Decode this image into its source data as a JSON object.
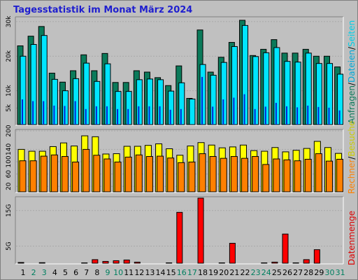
{
  "title": "Tagesstatistik im Monat März 2024",
  "colors": {
    "background": "#bfbfbf",
    "plot_bg": "#c0c0c0",
    "anfragen": "#0b7a5a",
    "dateien": "#00e5ff",
    "seiten": "#0025d6",
    "besuche": "#ffff00",
    "rechner": "#ff8000",
    "datenmenge": "#ff0000",
    "weekend_label": "#008060",
    "weekday_label": "#000000",
    "title": "#1f1fcf"
  },
  "right_labels": {
    "top": [
      {
        "text": "Anfragen",
        "color": "#0b7a5a"
      },
      {
        "text": "/",
        "color": "#000000"
      },
      {
        "text": "Dateien",
        "color": "#00a8d8"
      },
      {
        "text": "/",
        "color": "#000000"
      },
      {
        "text": "Seiten",
        "color": "#00cfe8"
      }
    ],
    "middle": [
      {
        "text": "Rechner",
        "color": "#ff8000"
      },
      {
        "text": "/",
        "color": "#000000"
      },
      {
        "text": "Besuche",
        "color": "#cccc00"
      }
    ],
    "bottom": [
      {
        "text": "Datenmenge",
        "color": "#dd0000"
      }
    ]
  },
  "chart_data": [
    {
      "type": "bar",
      "panel": "top",
      "x": [
        "1",
        "2",
        "3",
        "4",
        "5",
        "6",
        "7",
        "8",
        "9",
        "10",
        "11",
        "12",
        "13",
        "14",
        "15",
        "16",
        "17",
        "18",
        "19",
        "20",
        "21",
        "22",
        "23",
        "24",
        "25",
        "26",
        "27",
        "28",
        "29",
        "30",
        "31"
      ],
      "ylim": [
        0,
        31000
      ],
      "yticks": [
        "5k",
        "10k",
        "20k",
        "30k"
      ],
      "ytick_values": [
        5000,
        10000,
        20000,
        30000
      ],
      "series": [
        {
          "name": "Anfragen",
          "values": [
            23000,
            25800,
            28600,
            15100,
            12500,
            15800,
            20400,
            15800,
            20800,
            12400,
            12400,
            15800,
            15400,
            13800,
            11500,
            17200,
            7800,
            27600,
            15400,
            19700,
            24000,
            30400,
            20200,
            22000,
            24800,
            20900,
            20900,
            22000,
            20000,
            20000,
            16900
          ]
        },
        {
          "name": "Dateien",
          "values": [
            20000,
            23400,
            26000,
            13300,
            10000,
            13500,
            18000,
            12700,
            17800,
            9800,
            9800,
            13200,
            13400,
            13200,
            9900,
            12300,
            7600,
            17600,
            14500,
            18200,
            22800,
            28900,
            19900,
            21000,
            22500,
            18500,
            18300,
            20900,
            17900,
            17900,
            14800
          ]
        },
        {
          "name": "Seiten",
          "values": [
            7500,
            7000,
            7000,
            5700,
            5600,
            7000,
            4700,
            5500,
            5500,
            4700,
            4700,
            5500,
            5500,
            5500,
            4500,
            4700,
            0,
            14000,
            5400,
            7500,
            8000,
            9000,
            4700,
            5400,
            6500,
            5500,
            5200,
            5700,
            5300,
            5100,
            4300
          ]
        }
      ]
    },
    {
      "type": "bar",
      "panel": "middle",
      "x": [
        "1",
        "2",
        "3",
        "4",
        "5",
        "6",
        "7",
        "8",
        "9",
        "10",
        "11",
        "12",
        "13",
        "14",
        "15",
        "16",
        "17",
        "18",
        "19",
        "20",
        "21",
        "22",
        "23",
        "24",
        "25",
        "26",
        "27",
        "28",
        "29",
        "30",
        "31"
      ],
      "ylim": [
        0,
        200
      ],
      "yticks": [
        "20",
        "60",
        "100",
        "140",
        "200"
      ],
      "ytick_values": [
        20,
        60,
        100,
        140,
        200
      ],
      "series": [
        {
          "name": "Besuche",
          "values": [
            140,
            134,
            134,
            149,
            161,
            151,
            184,
            181,
            125,
            126,
            150,
            150,
            153,
            158,
            142,
            121,
            151,
            162,
            154,
            145,
            148,
            154,
            136,
            134,
            146,
            132,
            137,
            143,
            166,
            146,
            127
          ]
        },
        {
          "name": "Rechner",
          "values": [
            103,
            103,
            118,
            122,
            117,
            99,
            140,
            121,
            109,
            99,
            115,
            122,
            117,
            118,
            112,
            97,
            99,
            126,
            117,
            111,
            117,
            111,
            117,
            91,
            109,
            106,
            103,
            108,
            126,
            102,
            108
          ]
        }
      ]
    },
    {
      "type": "bar",
      "panel": "bottom",
      "x": [
        "1",
        "2",
        "3",
        "4",
        "5",
        "6",
        "7",
        "8",
        "9",
        "10",
        "11",
        "12",
        "13",
        "14",
        "15",
        "16",
        "17",
        "18",
        "19",
        "20",
        "21",
        "22",
        "23",
        "24",
        "25",
        "26",
        "27",
        "28",
        "29",
        "30",
        "31"
      ],
      "ylim": [
        0,
        18.5
      ],
      "yticks": [
        "5G",
        "15G"
      ],
      "ytick_values": [
        5,
        15
      ],
      "series": [
        {
          "name": "Datenmenge",
          "values": [
            0.4,
            0.25,
            0.35,
            0.25,
            0.2,
            0.25,
            0.3,
            1.2,
            0.7,
            0.9,
            1.1,
            0.5,
            0.25,
            0.25,
            0.3,
            14.5,
            0.25,
            18.5,
            0.25,
            0.3,
            5.8,
            0.25,
            0.25,
            0.3,
            0.5,
            8.4,
            0.3,
            1.2,
            4.0,
            0.25,
            0.25
          ]
        }
      ]
    }
  ],
  "x_labels": [
    {
      "text": "1",
      "weekend": false
    },
    {
      "text": "2",
      "weekend": true
    },
    {
      "text": "3",
      "weekend": true
    },
    {
      "text": "4",
      "weekend": false
    },
    {
      "text": "5",
      "weekend": false
    },
    {
      "text": "6",
      "weekend": false
    },
    {
      "text": "7",
      "weekend": false
    },
    {
      "text": "8",
      "weekend": false
    },
    {
      "text": "9",
      "weekend": true
    },
    {
      "text": "10",
      "weekend": true
    },
    {
      "text": "11",
      "weekend": false
    },
    {
      "text": "12",
      "weekend": false
    },
    {
      "text": "13",
      "weekend": false
    },
    {
      "text": "14",
      "weekend": false
    },
    {
      "text": "15",
      "weekend": false
    },
    {
      "text": "16",
      "weekend": true
    },
    {
      "text": "17",
      "weekend": true
    },
    {
      "text": "18",
      "weekend": false
    },
    {
      "text": "19",
      "weekend": false
    },
    {
      "text": "20",
      "weekend": false
    },
    {
      "text": "21",
      "weekend": false
    },
    {
      "text": "22",
      "weekend": false
    },
    {
      "text": "23",
      "weekend": true
    },
    {
      "text": "24",
      "weekend": true
    },
    {
      "text": "25",
      "weekend": false
    },
    {
      "text": "26",
      "weekend": false
    },
    {
      "text": "27",
      "weekend": false
    },
    {
      "text": "28",
      "weekend": false
    },
    {
      "text": "29",
      "weekend": false
    },
    {
      "text": "30",
      "weekend": true
    },
    {
      "text": "31",
      "weekend": true
    }
  ]
}
